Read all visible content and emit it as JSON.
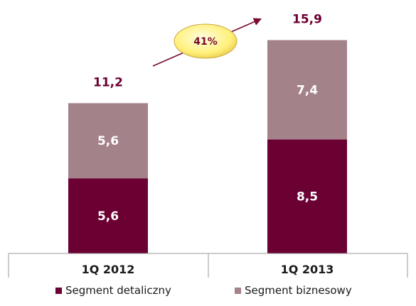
{
  "chart_data": {
    "type": "bar",
    "stacked": true,
    "categories": [
      "1Q 2012",
      "1Q 2013"
    ],
    "series": [
      {
        "name": "Segment detaliczny",
        "values": [
          5.6,
          8.5
        ],
        "value_labels": [
          "5,6",
          "8,5"
        ],
        "color": "#6b0033"
      },
      {
        "name": "Segment biznesowy",
        "values": [
          5.6,
          7.4
        ],
        "value_labels": [
          "5,6",
          "7,4"
        ],
        "color": "#a48289"
      }
    ],
    "totals": [
      11.2,
      15.9
    ],
    "total_labels": [
      "11,2",
      "15,9"
    ],
    "growth_label": "41%",
    "ylim": [
      0,
      16.5
    ],
    "legend_position": "bottom",
    "grid": false,
    "colors": {
      "total_text": "#6b0033",
      "growth_bubble": "#fff2a0",
      "growth_arrow": "#7a0a2e"
    }
  }
}
